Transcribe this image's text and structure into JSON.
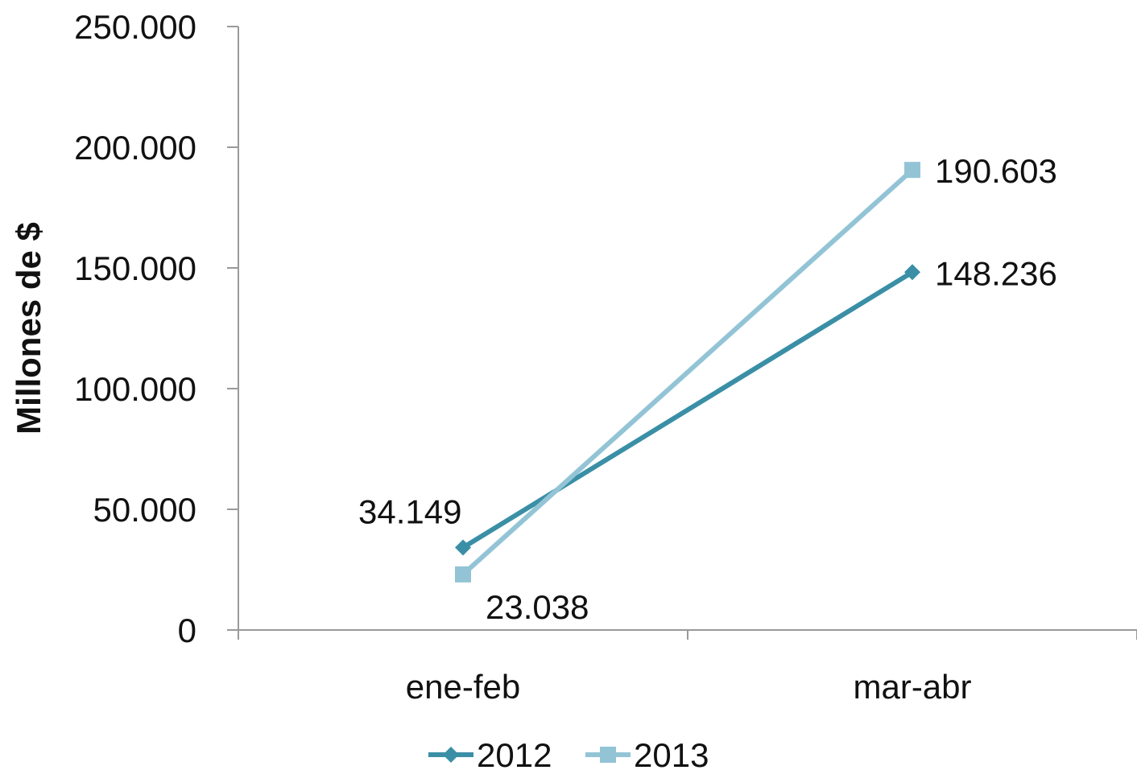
{
  "chart_data": {
    "type": "line",
    "title": "",
    "xlabel": "",
    "ylabel": "Millones de $",
    "categories": [
      "ene-feb",
      "mar-abr"
    ],
    "ylim": [
      0,
      250000
    ],
    "yticks": [
      0,
      50000,
      100000,
      150000,
      200000,
      250000
    ],
    "ytick_labels": [
      "0",
      "50.000",
      "100.000",
      "150.000",
      "200.000",
      "250.000"
    ],
    "grid": false,
    "legend_position": "bottom",
    "series": [
      {
        "name": "2012",
        "values": [
          34149,
          148236
        ],
        "labels": [
          "34.149",
          "148.236"
        ],
        "color": "#3a8fa6",
        "marker": "diamond"
      },
      {
        "name": "2013",
        "values": [
          23038,
          190603
        ],
        "labels": [
          "23.038",
          "190.603"
        ],
        "color": "#93c4d6",
        "marker": "square"
      }
    ]
  }
}
